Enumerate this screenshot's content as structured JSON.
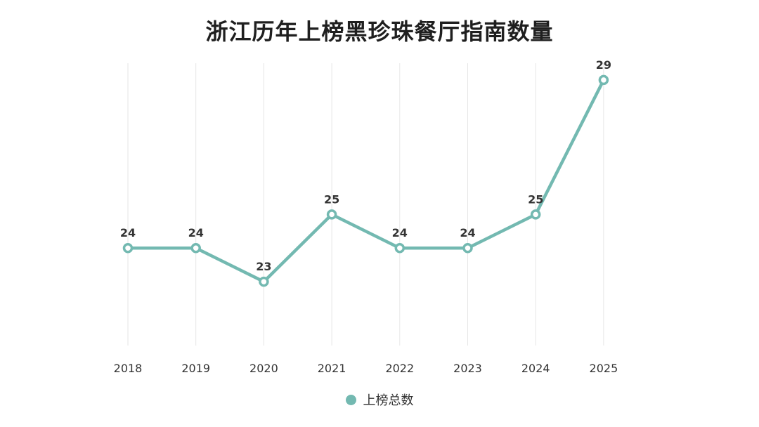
{
  "chart_data": {
    "type": "line",
    "title": "浙江历年上榜黑珍珠餐厅指南数量",
    "x": [
      "2018",
      "2019",
      "2020",
      "2021",
      "2022",
      "2023",
      "2024",
      "2025"
    ],
    "series": [
      {
        "name": "上榜总数",
        "values": [
          24,
          24,
          23,
          25,
          24,
          24,
          25,
          29
        ],
        "color": "#73b9b1"
      }
    ],
    "ylim": [
      21.1,
      29.5
    ],
    "grid": {
      "vertical": true,
      "horizontal": false
    },
    "legend_position": "bottom-center",
    "data_labels": true
  }
}
